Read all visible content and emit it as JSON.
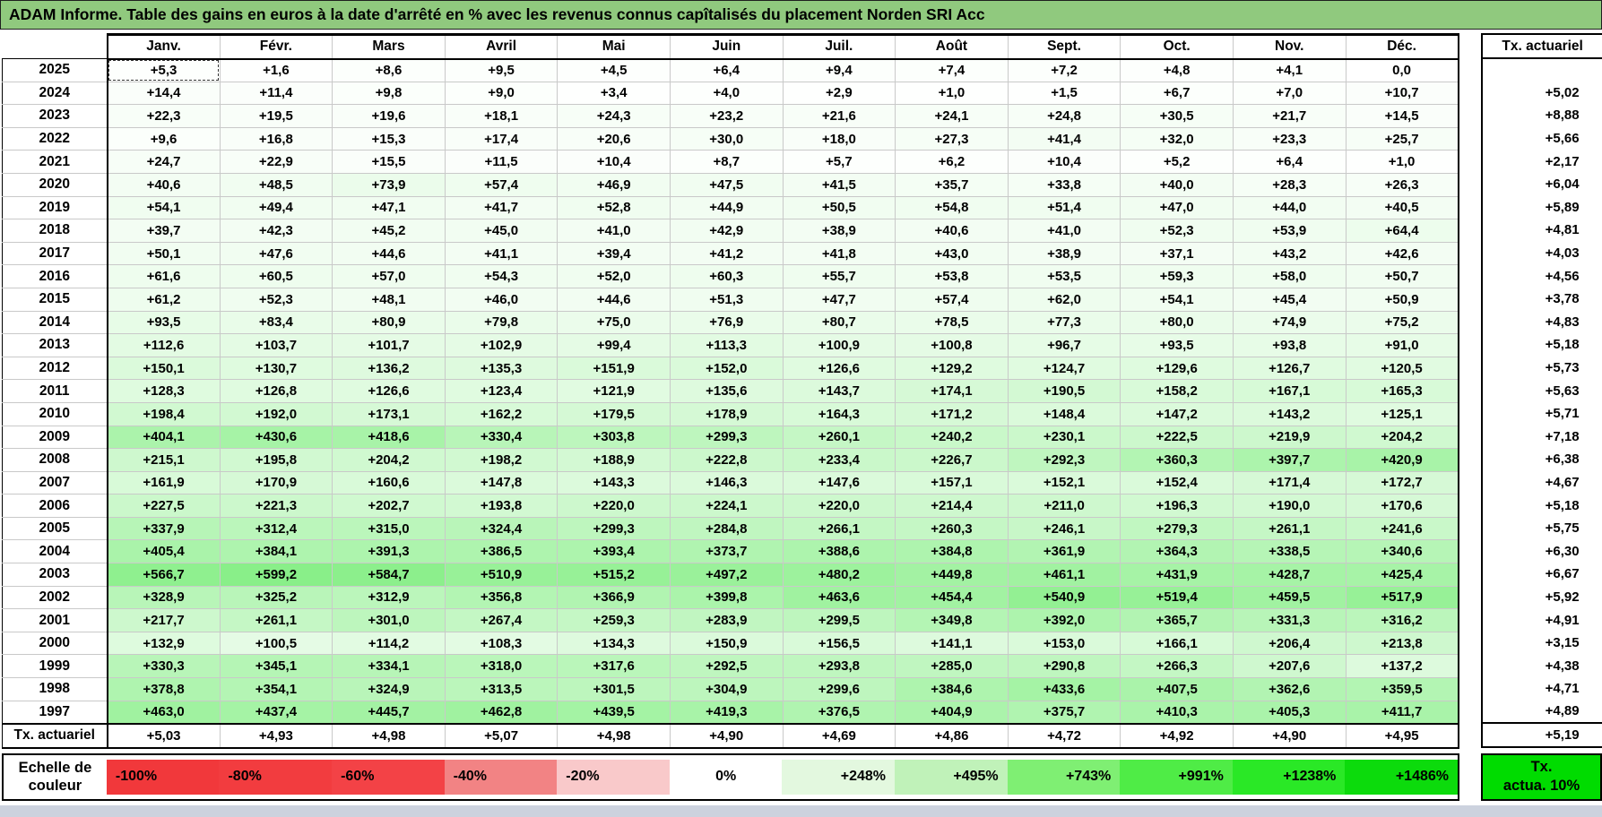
{
  "title": "ADAM Informe. Table des gains en euros à la date d'arrêté en % avec les revenus connus capîtalisés du placement Norden SRI Acc",
  "columns": {
    "months": [
      "Janv.",
      "Févr.",
      "Mars",
      "Avril",
      "Mai",
      "Juin",
      "Juil.",
      "Août",
      "Sept.",
      "Oct.",
      "Nov.",
      "Déc."
    ],
    "tx_header": "Tx. actuariel"
  },
  "rows": [
    {
      "year": "2025",
      "values": [
        "+5,3",
        "+1,6",
        "+8,6",
        "+9,5",
        "+4,5",
        "+6,4",
        "+9,4",
        "+7,4",
        "+7,2",
        "+4,8",
        "+4,1",
        "0,0"
      ],
      "tx": ""
    },
    {
      "year": "2024",
      "values": [
        "+14,4",
        "+11,4",
        "+9,8",
        "+9,0",
        "+3,4",
        "+4,0",
        "+2,9",
        "+1,0",
        "+1,5",
        "+6,7",
        "+7,0",
        "+10,7"
      ],
      "tx": "+5,02"
    },
    {
      "year": "2023",
      "values": [
        "+22,3",
        "+19,5",
        "+19,6",
        "+18,1",
        "+24,3",
        "+23,2",
        "+21,6",
        "+24,1",
        "+24,8",
        "+30,5",
        "+21,7",
        "+14,5"
      ],
      "tx": "+8,88"
    },
    {
      "year": "2022",
      "values": [
        "+9,6",
        "+16,8",
        "+15,3",
        "+17,4",
        "+20,6",
        "+30,0",
        "+18,0",
        "+27,3",
        "+41,4",
        "+32,0",
        "+23,3",
        "+25,7"
      ],
      "tx": "+5,66"
    },
    {
      "year": "2021",
      "values": [
        "+24,7",
        "+22,9",
        "+15,5",
        "+11,5",
        "+10,4",
        "+8,7",
        "+5,7",
        "+6,2",
        "+10,4",
        "+5,2",
        "+6,4",
        "+1,0"
      ],
      "tx": "+2,17"
    },
    {
      "year": "2020",
      "values": [
        "+40,6",
        "+48,5",
        "+73,9",
        "+57,4",
        "+46,9",
        "+47,5",
        "+41,5",
        "+35,7",
        "+33,8",
        "+40,0",
        "+28,3",
        "+26,3"
      ],
      "tx": "+6,04"
    },
    {
      "year": "2019",
      "values": [
        "+54,1",
        "+49,4",
        "+47,1",
        "+41,7",
        "+52,8",
        "+44,9",
        "+50,5",
        "+54,8",
        "+51,4",
        "+47,0",
        "+44,0",
        "+40,5"
      ],
      "tx": "+5,89"
    },
    {
      "year": "2018",
      "values": [
        "+39,7",
        "+42,3",
        "+45,2",
        "+45,0",
        "+41,0",
        "+42,9",
        "+38,9",
        "+40,6",
        "+41,0",
        "+52,3",
        "+53,9",
        "+64,4"
      ],
      "tx": "+4,81"
    },
    {
      "year": "2017",
      "values": [
        "+50,1",
        "+47,6",
        "+44,6",
        "+41,1",
        "+39,4",
        "+41,2",
        "+41,8",
        "+43,0",
        "+38,9",
        "+37,1",
        "+43,2",
        "+42,6"
      ],
      "tx": "+4,03"
    },
    {
      "year": "2016",
      "values": [
        "+61,6",
        "+60,5",
        "+57,0",
        "+54,3",
        "+52,0",
        "+60,3",
        "+55,7",
        "+53,8",
        "+53,5",
        "+59,3",
        "+58,0",
        "+50,7"
      ],
      "tx": "+4,56"
    },
    {
      "year": "2015",
      "values": [
        "+61,2",
        "+52,3",
        "+48,1",
        "+46,0",
        "+44,6",
        "+51,3",
        "+47,7",
        "+57,4",
        "+62,0",
        "+54,1",
        "+45,4",
        "+50,9"
      ],
      "tx": "+3,78"
    },
    {
      "year": "2014",
      "values": [
        "+93,5",
        "+83,4",
        "+80,9",
        "+79,8",
        "+75,0",
        "+76,9",
        "+80,7",
        "+78,5",
        "+77,3",
        "+80,0",
        "+74,9",
        "+75,2"
      ],
      "tx": "+4,83"
    },
    {
      "year": "2013",
      "values": [
        "+112,6",
        "+103,7",
        "+101,7",
        "+102,9",
        "+99,4",
        "+113,3",
        "+100,9",
        "+100,8",
        "+96,7",
        "+93,5",
        "+93,8",
        "+91,0"
      ],
      "tx": "+5,18"
    },
    {
      "year": "2012",
      "values": [
        "+150,1",
        "+130,7",
        "+136,2",
        "+135,3",
        "+151,9",
        "+152,0",
        "+126,6",
        "+129,2",
        "+124,7",
        "+129,6",
        "+126,7",
        "+120,5"
      ],
      "tx": "+5,73"
    },
    {
      "year": "2011",
      "values": [
        "+128,3",
        "+126,8",
        "+126,6",
        "+123,4",
        "+121,9",
        "+135,6",
        "+143,7",
        "+174,1",
        "+190,5",
        "+158,2",
        "+167,1",
        "+165,3"
      ],
      "tx": "+5,63"
    },
    {
      "year": "2010",
      "values": [
        "+198,4",
        "+192,0",
        "+173,1",
        "+162,2",
        "+179,5",
        "+178,9",
        "+164,3",
        "+171,2",
        "+148,4",
        "+147,2",
        "+143,2",
        "+125,1"
      ],
      "tx": "+5,71"
    },
    {
      "year": "2009",
      "values": [
        "+404,1",
        "+430,6",
        "+418,6",
        "+330,4",
        "+303,8",
        "+299,3",
        "+260,1",
        "+240,2",
        "+230,1",
        "+222,5",
        "+219,9",
        "+204,2"
      ],
      "tx": "+7,18"
    },
    {
      "year": "2008",
      "values": [
        "+215,1",
        "+195,8",
        "+204,2",
        "+198,2",
        "+188,9",
        "+222,8",
        "+233,4",
        "+226,7",
        "+292,3",
        "+360,3",
        "+397,7",
        "+420,9"
      ],
      "tx": "+6,38"
    },
    {
      "year": "2007",
      "values": [
        "+161,9",
        "+170,9",
        "+160,6",
        "+147,8",
        "+143,3",
        "+146,3",
        "+147,6",
        "+157,1",
        "+152,1",
        "+152,4",
        "+171,4",
        "+172,7"
      ],
      "tx": "+4,67"
    },
    {
      "year": "2006",
      "values": [
        "+227,5",
        "+221,3",
        "+202,7",
        "+193,8",
        "+220,0",
        "+224,1",
        "+220,0",
        "+214,4",
        "+211,0",
        "+196,3",
        "+190,0",
        "+170,6"
      ],
      "tx": "+5,18"
    },
    {
      "year": "2005",
      "values": [
        "+337,9",
        "+312,4",
        "+315,0",
        "+324,4",
        "+299,3",
        "+284,8",
        "+266,1",
        "+260,3",
        "+246,1",
        "+279,3",
        "+261,1",
        "+241,6"
      ],
      "tx": "+5,75"
    },
    {
      "year": "2004",
      "values": [
        "+405,4",
        "+384,1",
        "+391,3",
        "+386,5",
        "+393,4",
        "+373,7",
        "+388,6",
        "+384,8",
        "+361,9",
        "+364,3",
        "+338,5",
        "+340,6"
      ],
      "tx": "+6,30"
    },
    {
      "year": "2003",
      "values": [
        "+566,7",
        "+599,2",
        "+584,7",
        "+510,9",
        "+515,2",
        "+497,2",
        "+480,2",
        "+449,8",
        "+461,1",
        "+431,9",
        "+428,7",
        "+425,4"
      ],
      "tx": "+6,67"
    },
    {
      "year": "2002",
      "values": [
        "+328,9",
        "+325,2",
        "+312,9",
        "+356,8",
        "+366,9",
        "+399,8",
        "+463,6",
        "+454,4",
        "+540,9",
        "+519,4",
        "+459,5",
        "+517,9"
      ],
      "tx": "+5,92"
    },
    {
      "year": "2001",
      "values": [
        "+217,7",
        "+261,1",
        "+301,0",
        "+267,4",
        "+259,3",
        "+283,9",
        "+299,5",
        "+349,8",
        "+392,0",
        "+365,7",
        "+331,3",
        "+316,2"
      ],
      "tx": "+4,91"
    },
    {
      "year": "2000",
      "values": [
        "+132,9",
        "+100,5",
        "+114,2",
        "+108,3",
        "+134,3",
        "+150,9",
        "+156,5",
        "+141,1",
        "+153,0",
        "+166,1",
        "+206,4",
        "+213,8"
      ],
      "tx": "+3,15"
    },
    {
      "year": "1999",
      "values": [
        "+330,3",
        "+345,1",
        "+334,1",
        "+318,0",
        "+317,6",
        "+292,5",
        "+293,8",
        "+285,0",
        "+290,8",
        "+266,3",
        "+207,6",
        "+137,2"
      ],
      "tx": "+4,38"
    },
    {
      "year": "1998",
      "values": [
        "+378,8",
        "+354,1",
        "+324,9",
        "+313,5",
        "+301,5",
        "+304,9",
        "+299,6",
        "+384,6",
        "+433,6",
        "+407,5",
        "+362,6",
        "+359,5"
      ],
      "tx": "+4,71"
    },
    {
      "year": "1997",
      "values": [
        "+463,0",
        "+437,4",
        "+445,7",
        "+462,8",
        "+439,5",
        "+419,3",
        "+376,5",
        "+404,9",
        "+375,7",
        "+410,3",
        "+405,3",
        "+411,7"
      ],
      "tx": "+4,89"
    }
  ],
  "footer": {
    "label": "Tx. actuariel",
    "values": [
      "+5,03",
      "+4,93",
      "+4,98",
      "+5,07",
      "+4,98",
      "+4,90",
      "+4,69",
      "+4,86",
      "+4,72",
      "+4,92",
      "+4,90",
      "+4,95"
    ],
    "tx": "+5,19"
  },
  "legend": {
    "label_line1": "Echelle de",
    "label_line2": "couleur",
    "items": [
      {
        "label": "-100%",
        "color": "#F1383B"
      },
      {
        "label": "-80%",
        "color": "#F23C3F"
      },
      {
        "label": "-60%",
        "color": "#F34246"
      },
      {
        "label": "-40%",
        "color": "#F28384"
      },
      {
        "label": "-20%",
        "color": "#F9C9CA"
      },
      {
        "label": "0%",
        "color": "#FFFFFF"
      },
      {
        "label": "+248%",
        "color": "#E3F8DF"
      },
      {
        "label": "+495%",
        "color": "#C0F2B9"
      },
      {
        "label": "+743%",
        "color": "#7FEF73"
      },
      {
        "label": "+991%",
        "color": "#4FEC46"
      },
      {
        "label": "+1238%",
        "color": "#2AE826"
      },
      {
        "label": "+1486%",
        "color": "#0CDB0C"
      }
    ],
    "tx_box_line1": "Tx.",
    "tx_box_line2": "actua. 10%"
  },
  "colors": {
    "titlebar_green": "#90C97E",
    "tx_box_green": "#00DC00",
    "bottom_strip": "#CCD2DE",
    "scale_max_green": "#00DC00"
  },
  "color_scale": {
    "max_value": 1486,
    "gamma": 0.85
  }
}
